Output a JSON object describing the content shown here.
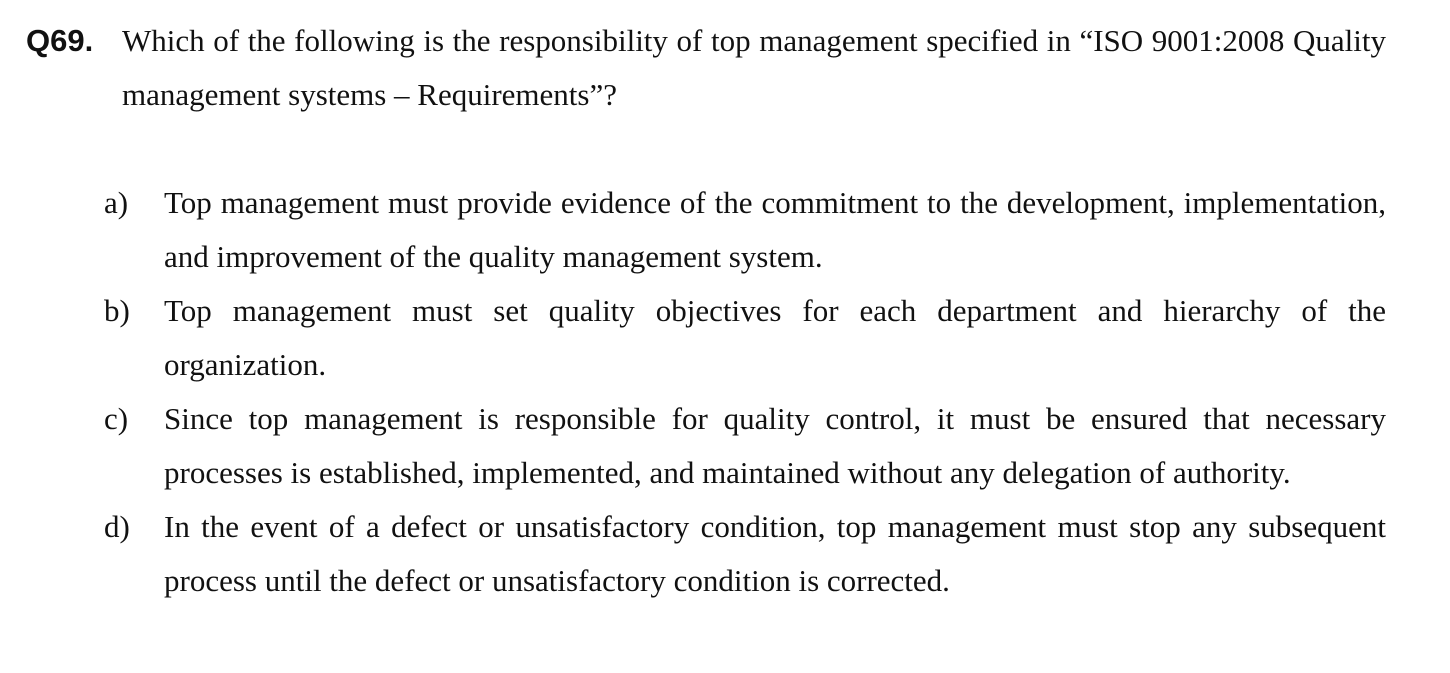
{
  "question": {
    "label": "Q69.",
    "text": "Which of the following is the responsibility of top management specified in “ISO 9001:2008 Quality management systems – Requirements”?"
  },
  "options": [
    {
      "letter": "a)",
      "text": "Top management must provide evidence of the commitment to the development, implementation, and improvement of the quality management system."
    },
    {
      "letter": "b)",
      "text": "Top management must set quality objectives for each department and hierarchy of the organization."
    },
    {
      "letter": "c)",
      "text": "Since top management is responsible for quality control, it must be ensured that necessary processes is established, implemented, and maintained without any delegation of authority."
    },
    {
      "letter": "d)",
      "text": "In the event of a defect or unsatisfactory condition, top management must stop any subsequent process until the defect or unsatisfactory condition is corrected."
    }
  ]
}
